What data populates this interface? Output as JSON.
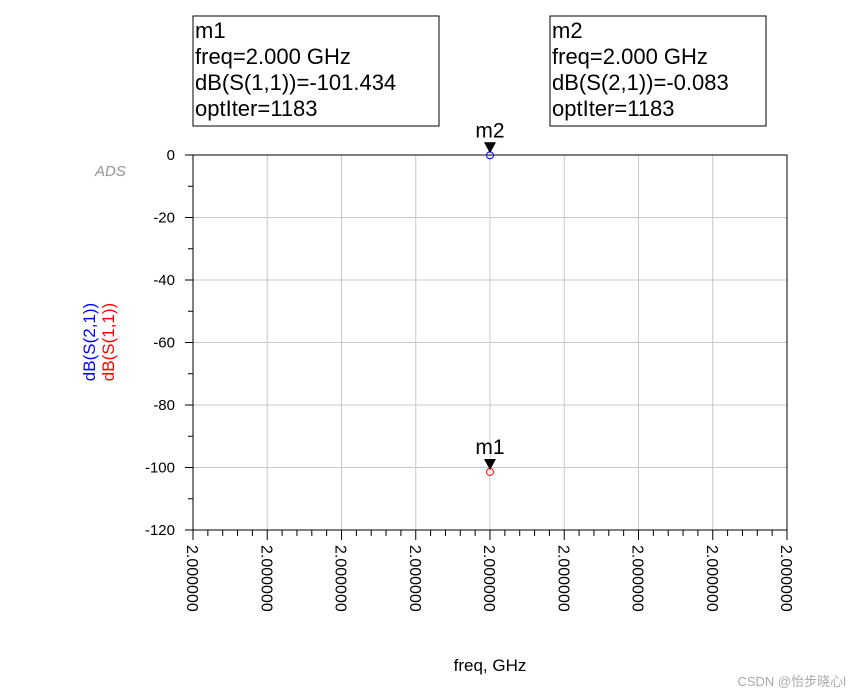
{
  "chart_data": {
    "type": "scatter",
    "logo": "ADS",
    "xlabel": "freq, GHz",
    "xlim": [
      1.9999996,
      2.0000004
    ],
    "xticks": [
      {
        "value": 1.9999996,
        "label": "2.000000"
      },
      {
        "value": 1.9999997,
        "label": "2.000000"
      },
      {
        "value": 1.9999998,
        "label": "2.000000"
      },
      {
        "value": 1.9999999,
        "label": "2.000000"
      },
      {
        "value": 2.0,
        "label": "2.000000"
      },
      {
        "value": 2.0000001,
        "label": "2.000000"
      },
      {
        "value": 2.0000002,
        "label": "2.000000"
      },
      {
        "value": 2.0000003,
        "label": "2.000000"
      },
      {
        "value": 2.0000004,
        "label": "2.000000"
      }
    ],
    "ylim": [
      -120,
      0
    ],
    "yticks": [
      0,
      -20,
      -40,
      -60,
      -80,
      -100,
      -120
    ],
    "grid": true,
    "series": [
      {
        "name": "dB(S(2,1))",
        "color": "#0000ff",
        "x": [
          2.0
        ],
        "values": [
          -0.083
        ],
        "marker": {
          "name": "m2",
          "lines": [
            "m2",
            "freq=2.000 GHz",
            "dB(S(2,1))=-0.083",
            "optIter=1183"
          ]
        }
      },
      {
        "name": "dB(S(1,1))",
        "color": "#ff0000",
        "x": [
          2.0
        ],
        "values": [
          -101.434
        ],
        "marker": {
          "name": "m1",
          "lines": [
            "m1",
            "freq=2.000 GHz",
            "dB(S(1,1))=-101.434",
            "optIter=1183"
          ]
        }
      }
    ],
    "watermark": "CSDN @怡步晓心l"
  }
}
